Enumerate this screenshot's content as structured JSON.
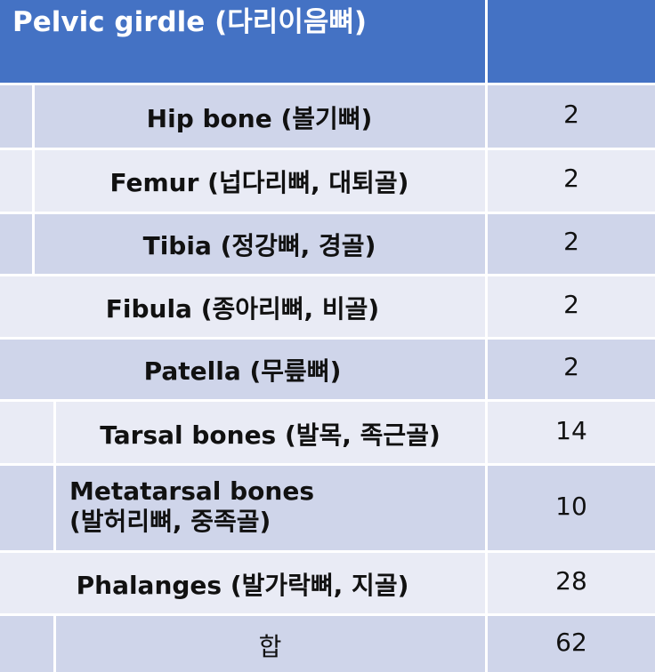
{
  "header": {
    "title": "Pelvic girdle (다리이음뼈)"
  },
  "rows": [
    {
      "name": "Hip bone (볼기뼈)",
      "count": "2"
    },
    {
      "name": "Femur (넙다리뼈, 대퇴골)",
      "count": "2"
    },
    {
      "name": "Tibia (정강뼈, 경골)",
      "count": "2"
    },
    {
      "name": "Fibula (종아리뼈, 비골)",
      "count": "2"
    },
    {
      "name": "Patella (무릎뼈)",
      "count": "2"
    },
    {
      "name": "Tarsal bones (발목, 족근골)",
      "count": "14"
    },
    {
      "name_line1": "Metatarsal bones",
      "name_line2": "(발허리뼈, 중족골)",
      "count": "10"
    },
    {
      "name": "Phalanges (발가락뼈, 지골)",
      "count": "28"
    }
  ],
  "total": {
    "label": "합",
    "count": "62"
  }
}
